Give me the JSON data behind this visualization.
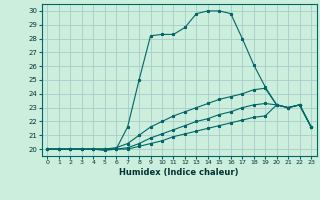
{
  "xlabel": "Humidex (Indice chaleur)",
  "background_color": "#cceedd",
  "grid_color": "#aacccc",
  "line_color": "#006666",
  "xlim": [
    -0.5,
    23.5
  ],
  "ylim": [
    19.5,
    30.5
  ],
  "xticks": [
    0,
    1,
    2,
    3,
    4,
    5,
    6,
    7,
    8,
    9,
    10,
    11,
    12,
    13,
    14,
    15,
    16,
    17,
    18,
    19,
    20,
    21,
    22,
    23
  ],
  "yticks": [
    20,
    21,
    22,
    23,
    24,
    25,
    26,
    27,
    28,
    29,
    30
  ],
  "line1_x": [
    0,
    1,
    2,
    3,
    4,
    5,
    6,
    7,
    8,
    9,
    10,
    11,
    12,
    13,
    14,
    15,
    16,
    17,
    18,
    19,
    20,
    21,
    22,
    23
  ],
  "line1_y": [
    20.0,
    20.0,
    20.0,
    20.0,
    20.0,
    19.9,
    20.0,
    21.6,
    25.0,
    28.2,
    28.3,
    28.3,
    28.8,
    29.8,
    30.0,
    30.0,
    29.8,
    28.0,
    26.1,
    24.5,
    23.2,
    23.0,
    23.2,
    21.6
  ],
  "line2_x": [
    0,
    1,
    2,
    3,
    4,
    5,
    6,
    7,
    8,
    9,
    10,
    11,
    12,
    13,
    14,
    15,
    16,
    17,
    18,
    19,
    20,
    21,
    22,
    23
  ],
  "line2_y": [
    20.0,
    20.0,
    20.0,
    20.0,
    20.0,
    20.0,
    20.1,
    20.4,
    21.0,
    21.6,
    22.0,
    22.4,
    22.7,
    23.0,
    23.3,
    23.6,
    23.8,
    24.0,
    24.3,
    24.4,
    23.2,
    23.0,
    23.2,
    21.6
  ],
  "line3_x": [
    0,
    1,
    2,
    3,
    4,
    5,
    6,
    7,
    8,
    9,
    10,
    11,
    12,
    13,
    14,
    15,
    16,
    17,
    18,
    19,
    20,
    21,
    22,
    23
  ],
  "line3_y": [
    20.0,
    20.0,
    20.0,
    20.0,
    20.0,
    20.0,
    20.0,
    20.1,
    20.4,
    20.8,
    21.1,
    21.4,
    21.7,
    22.0,
    22.2,
    22.5,
    22.7,
    23.0,
    23.2,
    23.3,
    23.2,
    23.0,
    23.2,
    21.6
  ],
  "line4_x": [
    0,
    1,
    2,
    3,
    4,
    5,
    6,
    7,
    8,
    9,
    10,
    11,
    12,
    13,
    14,
    15,
    16,
    17,
    18,
    19,
    20,
    21,
    22,
    23
  ],
  "line4_y": [
    20.0,
    20.0,
    20.0,
    20.0,
    20.0,
    20.0,
    20.0,
    20.0,
    20.2,
    20.4,
    20.6,
    20.9,
    21.1,
    21.3,
    21.5,
    21.7,
    21.9,
    22.1,
    22.3,
    22.4,
    23.2,
    23.0,
    23.2,
    21.6
  ]
}
